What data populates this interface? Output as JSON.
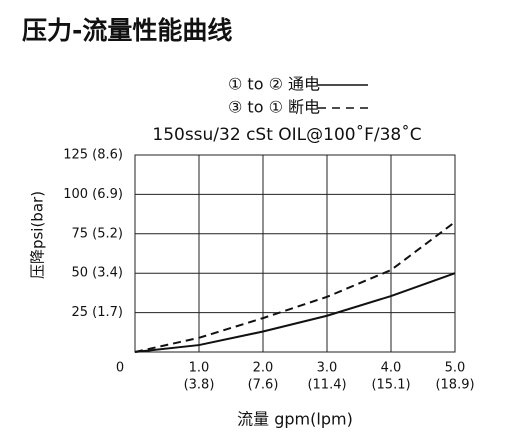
{
  "chart_data": {
    "type": "line",
    "title": "压力-流量性能曲线",
    "subtitle": "150ssu/32 cSt OIL@100˚F/38˚C",
    "x_label": "流量 gpm(lpm)",
    "y_label": "压降psi(bar)",
    "x": [
      0,
      1,
      2,
      3,
      4,
      5
    ],
    "series": [
      {
        "name": "① to ② 通电",
        "color": "#111111",
        "dash": false,
        "values": [
          0,
          4.4,
          13,
          23,
          35.5,
          50
        ]
      },
      {
        "name": "③ to ① 断电",
        "color": "#111111",
        "dash": true,
        "values": [
          0,
          9,
          21.5,
          35,
          52,
          82.5
        ]
      }
    ],
    "xlim": [
      0,
      5
    ],
    "xticks": [
      {
        "value": 1,
        "label": "1.0"
      },
      {
        "value": 2,
        "label": "2.0"
      },
      {
        "value": 3,
        "label": "3.0"
      },
      {
        "value": 4,
        "label": "4.0"
      },
      {
        "value": 5,
        "label": "5.0"
      }
    ],
    "xtick_sublabels": [
      "(3.8)",
      "(7.6)",
      "(11.4)",
      "(15.1)",
      "(18.9)"
    ],
    "ylim": [
      0,
      125
    ],
    "yticks": [
      0,
      {
        "value": 25,
        "label": "25 (1.7)"
      },
      {
        "value": 50,
        "label": "50 (3.4)"
      },
      {
        "value": 75,
        "label": "75 (5.2)"
      },
      {
        "value": 100,
        "label": "100 (6.9)"
      },
      {
        "value": 125,
        "label": "125 (8.6)"
      }
    ],
    "grid": true
  }
}
